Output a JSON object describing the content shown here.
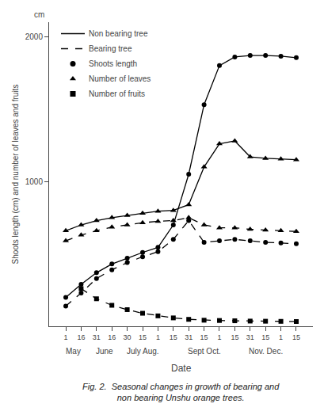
{
  "chart_data": {
    "type": "line",
    "xlabel": "Date",
    "ylabel": "Shoots length (cm) and number of leaves and fruits",
    "categories": [
      "1",
      "16",
      "31",
      "16",
      "30",
      "15",
      "1",
      "15",
      "31",
      "15",
      "1",
      "15",
      "31",
      "15",
      "1",
      "15"
    ],
    "ylim": [
      0,
      2100
    ],
    "yticks": [
      1000,
      2000
    ],
    "grid": false,
    "legend": "upper left",
    "series": [
      {
        "color": "#000000",
        "line_style": "solid",
        "marker": "circle",
        "values": [
          200,
          290,
          370,
          430,
          470,
          510,
          545,
          700,
          1050,
          1530,
          1800,
          1860,
          1870,
          1870,
          1865,
          1855
        ]
      },
      {
        "color": "#000000",
        "line_style": "dashed",
        "marker": "circle",
        "values": [
          140,
          230,
          330,
          390,
          440,
          480,
          515,
          600,
          730,
          580,
          590,
          600,
          590,
          580,
          575,
          570
        ]
      },
      {
        "color": "#000000",
        "line_style": "solid",
        "marker": "triangle",
        "values": [
          660,
          700,
          730,
          750,
          765,
          780,
          795,
          800,
          840,
          1100,
          1260,
          1280,
          1170,
          1160,
          1155,
          1150
        ]
      },
      {
        "color": "#000000",
        "line_style": "dashed",
        "marker": "triangle",
        "values": [
          590,
          630,
          660,
          685,
          700,
          715,
          725,
          730,
          750,
          700,
          680,
          680,
          670,
          665,
          660,
          655
        ]
      },
      {
        "color": "#000000",
        "line_style": "dashed",
        "marker": "square",
        "values": [
          null,
          260,
          190,
          145,
          115,
          90,
          72,
          58,
          48,
          42,
          40,
          38,
          36,
          35,
          34,
          33
        ]
      }
    ],
    "legend_entries": [
      {
        "name": "Non bearing tree",
        "line_style": "solid",
        "color": "#000000"
      },
      {
        "name": "Bearing tree",
        "line_style": "dashed",
        "color": "#000000"
      },
      {
        "name": "Shoots length",
        "marker": "circle",
        "color": "#000000"
      },
      {
        "name": "Number of leaves",
        "marker": "triangle",
        "color": "#000000"
      },
      {
        "name": "Number of fruits",
        "marker": "square",
        "color": "#000000"
      }
    ],
    "annotations": [
      {
        "text": "May"
      },
      {
        "text": "June"
      },
      {
        "text": "July Aug."
      },
      {
        "text": "Sept Oct."
      },
      {
        "text": "Nov. Dec."
      },
      {
        "text": "cm"
      },
      {
        "text": "Fig. 2.  Seasonal changes in growth of bearing and\nnon bearing Unshu orange trees."
      }
    ]
  }
}
